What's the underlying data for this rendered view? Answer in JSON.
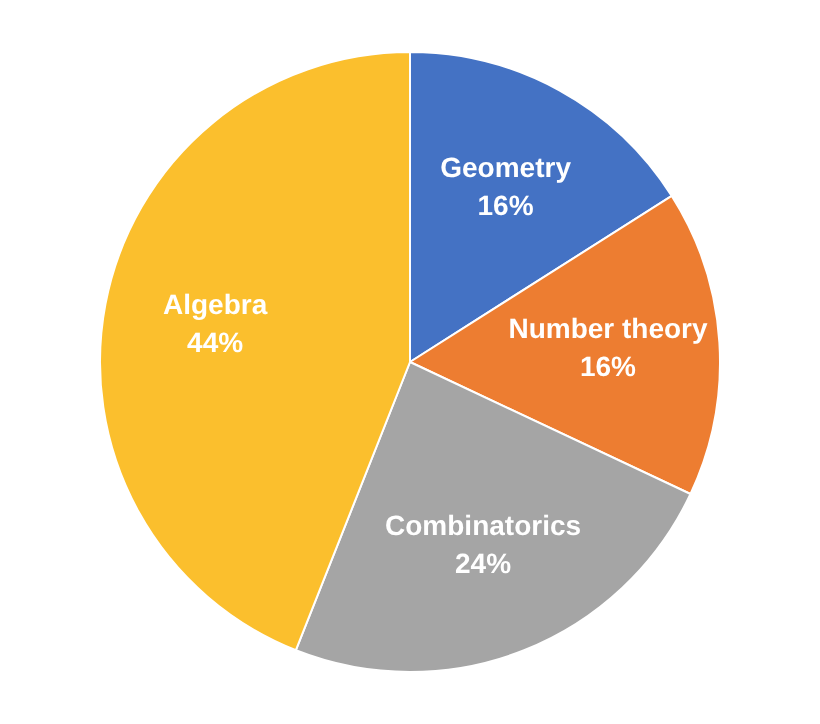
{
  "chart_data": {
    "type": "pie",
    "categories": [
      "Geometry",
      "Number theory",
      "Combinatorics",
      "Algebra"
    ],
    "values": [
      16,
      16,
      24,
      44
    ],
    "colors": [
      "#4472c4",
      "#ed7d31",
      "#a5a5a5",
      "#fbbf2d"
    ],
    "value_labels": [
      "16%",
      "16%",
      "24%",
      "44%"
    ]
  }
}
